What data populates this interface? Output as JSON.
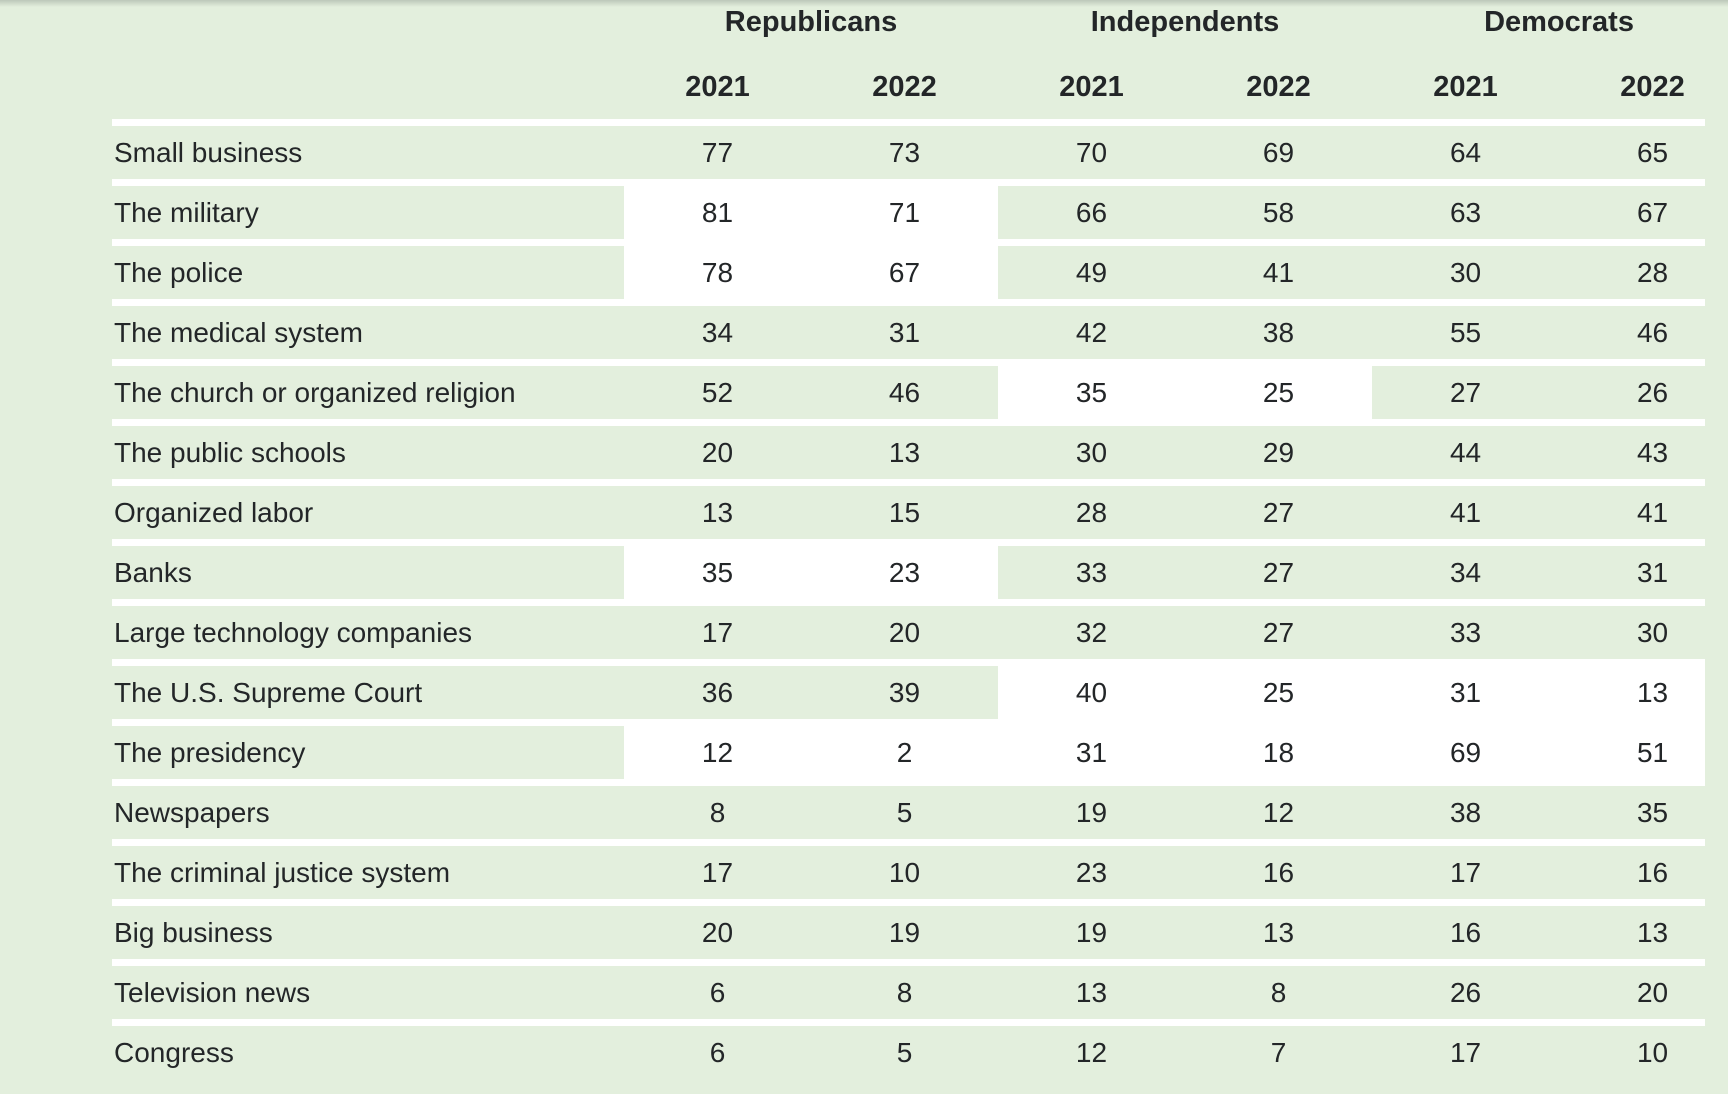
{
  "chart_data": {
    "type": "table",
    "column_groups": [
      "Republicans",
      "Independents",
      "Democrats"
    ],
    "columns": [
      "2021",
      "2022",
      "2021",
      "2022",
      "2021",
      "2022"
    ],
    "rows": [
      {
        "label": "Small business",
        "values": [
          77,
          73,
          70,
          69,
          64,
          65
        ],
        "highlight": []
      },
      {
        "label": "The military",
        "values": [
          81,
          71,
          66,
          58,
          63,
          67
        ],
        "highlight": [
          0,
          1
        ]
      },
      {
        "label": "The police",
        "values": [
          78,
          67,
          49,
          41,
          30,
          28
        ],
        "highlight": [
          0,
          1
        ]
      },
      {
        "label": "The medical system",
        "values": [
          34,
          31,
          42,
          38,
          55,
          46
        ],
        "highlight": []
      },
      {
        "label": "The church or organized religion",
        "values": [
          52,
          46,
          35,
          25,
          27,
          26
        ],
        "highlight": [
          2,
          3
        ]
      },
      {
        "label": "The public schools",
        "values": [
          20,
          13,
          30,
          29,
          44,
          43
        ],
        "highlight": []
      },
      {
        "label": "Organized labor",
        "values": [
          13,
          15,
          28,
          27,
          41,
          41
        ],
        "highlight": []
      },
      {
        "label": "Banks",
        "values": [
          35,
          23,
          33,
          27,
          34,
          31
        ],
        "highlight": [
          0,
          1
        ]
      },
      {
        "label": "Large technology companies",
        "values": [
          17,
          20,
          32,
          27,
          33,
          30
        ],
        "highlight": []
      },
      {
        "label": "The U.S. Supreme Court",
        "values": [
          36,
          39,
          40,
          25,
          31,
          13
        ],
        "highlight": [
          2,
          3,
          4,
          5
        ]
      },
      {
        "label": "The presidency",
        "values": [
          12,
          2,
          31,
          18,
          69,
          51
        ],
        "highlight": [
          0,
          1,
          2,
          3,
          4,
          5
        ]
      },
      {
        "label": "Newspapers",
        "values": [
          8,
          5,
          19,
          12,
          38,
          35
        ],
        "highlight": []
      },
      {
        "label": "The criminal justice system",
        "values": [
          17,
          10,
          23,
          16,
          17,
          16
        ],
        "highlight": []
      },
      {
        "label": "Big business",
        "values": [
          20,
          19,
          19,
          13,
          16,
          13
        ],
        "highlight": []
      },
      {
        "label": "Television news",
        "values": [
          6,
          8,
          13,
          8,
          26,
          20
        ],
        "highlight": []
      },
      {
        "label": "Congress",
        "values": [
          6,
          5,
          12,
          7,
          17,
          10
        ],
        "highlight": []
      }
    ],
    "layout": {
      "legend_position": "none",
      "grid": "horizontal-white-separators",
      "highlight_style": "white-cell-background"
    }
  },
  "colors": {
    "background": "#e3efdd",
    "row_band": "#e3efdd",
    "separator": "#ffffff",
    "highlight": "#ffffff",
    "text": "#232628"
  }
}
